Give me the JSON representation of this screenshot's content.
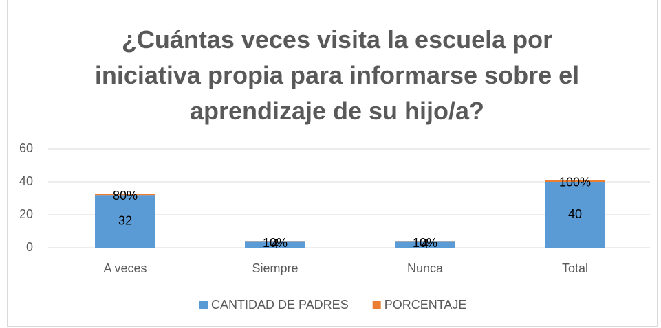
{
  "chart_data": {
    "type": "bar",
    "stacked": true,
    "title": "¿Cuántas veces visita la escuela por iniciativa propia para informarse sobre el aprendizaje de su hijo/a?",
    "categories": [
      "A veces",
      "Siempre",
      "Nunca",
      "Total"
    ],
    "series": [
      {
        "name": "CANTIDAD DE PADRES",
        "color": "#5b9bd5",
        "values": [
          32,
          4,
          4,
          40
        ]
      },
      {
        "name": "PORCENTAJE",
        "color": "#ed7d31",
        "values": [
          0.8,
          0.1,
          0.1,
          1
        ],
        "value_labels": [
          "80%",
          "10%",
          "10%",
          "100%"
        ]
      }
    ],
    "ylim": [
      0,
      60
    ],
    "yticks": [
      0,
      20,
      40,
      60
    ],
    "grid": true,
    "legend": "bottom"
  }
}
